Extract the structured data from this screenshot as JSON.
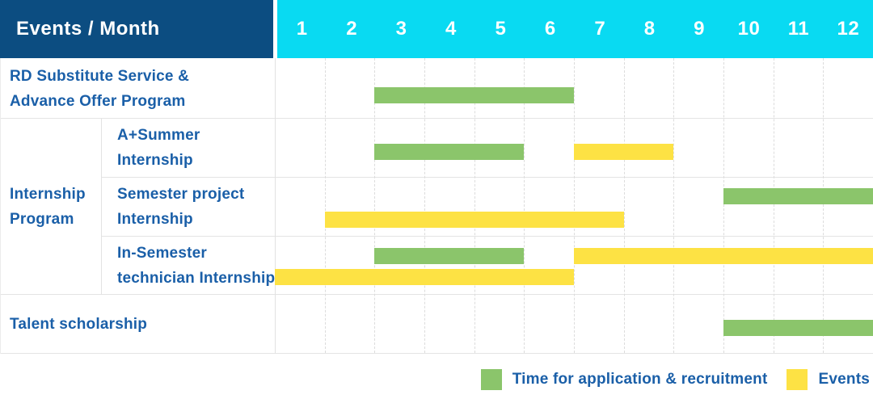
{
  "header": {
    "title": "Events / Month"
  },
  "chart_data": {
    "type": "gantt",
    "title": "Events / Month",
    "months": [
      "1",
      "2",
      "3",
      "4",
      "5",
      "6",
      "7",
      "8",
      "9",
      "10",
      "11",
      "12"
    ],
    "group": {
      "label_lines": [
        "Internship",
        "Program"
      ],
      "covers_rows": [
        1,
        2,
        3
      ]
    },
    "rows": [
      {
        "label_lines": [
          "RD Substitute Service &",
          "Advance Offer Program"
        ],
        "bars": [
          {
            "color": "green",
            "start": 3,
            "end": 6,
            "line": 1
          }
        ]
      },
      {
        "label_lines": [
          "A+Summer",
          "Internship"
        ],
        "bars": [
          {
            "color": "green",
            "start": 3,
            "end": 5,
            "line": 1
          },
          {
            "color": "yellow",
            "start": 7,
            "end": 8,
            "line": 1
          }
        ]
      },
      {
        "label_lines": [
          "Semester project",
          "Internship"
        ],
        "bars": [
          {
            "color": "green",
            "start": 10,
            "end": 12,
            "line": 1
          },
          {
            "color": "yellow",
            "start": 2,
            "end": 7,
            "line": 2
          }
        ]
      },
      {
        "label_lines": [
          "In-Semester",
          "technician Internship"
        ],
        "bars": [
          {
            "color": "green",
            "start": 3,
            "end": 5,
            "line": 1
          },
          {
            "color": "yellow",
            "start": 7,
            "end": 12,
            "line": 1
          },
          {
            "color": "yellow",
            "start": 1,
            "end": 6,
            "line": 2
          }
        ]
      },
      {
        "label_lines": [
          "Talent scholarship"
        ],
        "bars": [
          {
            "color": "green",
            "start": 10,
            "end": 12,
            "line": 1
          }
        ]
      }
    ],
    "legend": [
      {
        "color": "green",
        "label": "Time for application & recruitment"
      },
      {
        "color": "yellow",
        "label": "Events"
      }
    ],
    "colors": {
      "green": "#8BC56B",
      "yellow": "#FDE244",
      "header_blue": "#0C4D81",
      "cyan": "#09DAF2",
      "text_blue": "#1A5FA8"
    }
  }
}
